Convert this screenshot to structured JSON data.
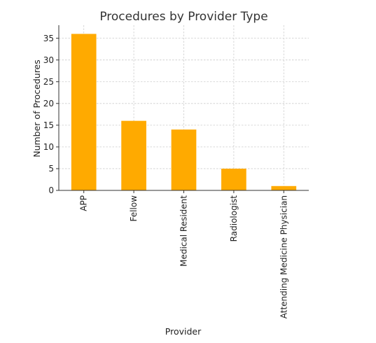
{
  "chart_data": {
    "type": "bar",
    "title": "Procedures by Provider Type",
    "xlabel": "Provider",
    "ylabel": "Number of Procedures",
    "categories": [
      "APP",
      "Fellow",
      "Medical Resident",
      "Radiologist",
      "Attending Medicine Physician"
    ],
    "values": [
      36,
      16,
      14,
      5,
      1
    ],
    "ylim": [
      0,
      38
    ],
    "yticks": [
      0,
      5,
      10,
      15,
      20,
      25,
      30,
      35
    ],
    "grid": true,
    "bar_color": "#FFAA00",
    "x_tick_rotation": "vertical"
  }
}
